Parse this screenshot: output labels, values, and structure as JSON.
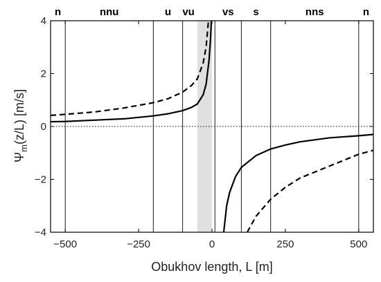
{
  "chart_data": {
    "type": "line",
    "title": "",
    "xlabel": "Obukhov length, L [m]",
    "ylabel": "Ψ_m(z/L) [m/s]",
    "ylabel_main": "Ψ",
    "ylabel_sub": "m",
    "ylabel_rest": "(z/L) [m/s]",
    "xlim": [
      -550,
      550
    ],
    "ylim": [
      -4,
      4
    ],
    "x_ticks": [
      -500,
      -250,
      0,
      250,
      500
    ],
    "x_tick_labels": [
      "−500",
      "−250",
      "0",
      "250",
      "500"
    ],
    "y_ticks": [
      -4,
      -2,
      0,
      2,
      4
    ],
    "y_tick_labels": [
      "−4",
      "−2",
      "0",
      "2",
      "4"
    ],
    "grid": false,
    "legend": "none",
    "shaded_band": {
      "x_range": [
        -50,
        0
      ],
      "color": "#e0e0e0"
    },
    "regime_boundaries": [
      -500,
      -200,
      -100,
      10,
      100,
      200,
      500
    ],
    "regime_labels": [
      {
        "text": "n",
        "x": -525
      },
      {
        "text": "nnu",
        "x": -350
      },
      {
        "text": "u",
        "x": -150
      },
      {
        "text": "vu",
        "x": -80
      },
      {
        "text": "vs",
        "x": 55
      },
      {
        "text": "s",
        "x": 150
      },
      {
        "text": "nns",
        "x": 350
      },
      {
        "text": "n",
        "x": 525
      }
    ],
    "zero_line": {
      "y": 0,
      "style": "dotted"
    },
    "series": [
      {
        "style": "solid",
        "color": "#000000",
        "negative_branch": [
          {
            "x": -550,
            "y": 0.18
          },
          {
            "x": -500,
            "y": 0.19
          },
          {
            "x": -400,
            "y": 0.24
          },
          {
            "x": -300,
            "y": 0.29
          },
          {
            "x": -200,
            "y": 0.4
          },
          {
            "x": -150,
            "y": 0.48
          },
          {
            "x": -100,
            "y": 0.6
          },
          {
            "x": -70,
            "y": 0.72
          },
          {
            "x": -50,
            "y": 0.85
          },
          {
            "x": -30,
            "y": 1.2
          },
          {
            "x": -20,
            "y": 1.6
          },
          {
            "x": -10,
            "y": 2.5
          },
          {
            "x": -5,
            "y": 3.3
          },
          {
            "x": -2,
            "y": 4.0
          }
        ],
        "positive_branch": [
          {
            "x": 40,
            "y": -4.0
          },
          {
            "x": 50,
            "y": -3.0
          },
          {
            "x": 60,
            "y": -2.5
          },
          {
            "x": 80,
            "y": -1.9
          },
          {
            "x": 100,
            "y": -1.55
          },
          {
            "x": 150,
            "y": -1.1
          },
          {
            "x": 200,
            "y": -0.85
          },
          {
            "x": 250,
            "y": -0.7
          },
          {
            "x": 300,
            "y": -0.58
          },
          {
            "x": 400,
            "y": -0.43
          },
          {
            "x": 500,
            "y": -0.35
          },
          {
            "x": 550,
            "y": -0.3
          }
        ]
      },
      {
        "style": "dashed",
        "color": "#000000",
        "negative_branch": [
          {
            "x": -550,
            "y": 0.42
          },
          {
            "x": -500,
            "y": 0.46
          },
          {
            "x": -400,
            "y": 0.55
          },
          {
            "x": -300,
            "y": 0.7
          },
          {
            "x": -200,
            "y": 0.9
          },
          {
            "x": -150,
            "y": 1.05
          },
          {
            "x": -100,
            "y": 1.3
          },
          {
            "x": -70,
            "y": 1.55
          },
          {
            "x": -50,
            "y": 1.8
          },
          {
            "x": -30,
            "y": 2.4
          },
          {
            "x": -20,
            "y": 3.0
          },
          {
            "x": -12,
            "y": 4.0
          }
        ],
        "positive_branch": [
          {
            "x": 120,
            "y": -4.0
          },
          {
            "x": 150,
            "y": -3.4
          },
          {
            "x": 200,
            "y": -2.75
          },
          {
            "x": 250,
            "y": -2.3
          },
          {
            "x": 300,
            "y": -1.95
          },
          {
            "x": 400,
            "y": -1.5
          },
          {
            "x": 500,
            "y": -1.05
          },
          {
            "x": 550,
            "y": -0.9
          }
        ]
      }
    ]
  }
}
